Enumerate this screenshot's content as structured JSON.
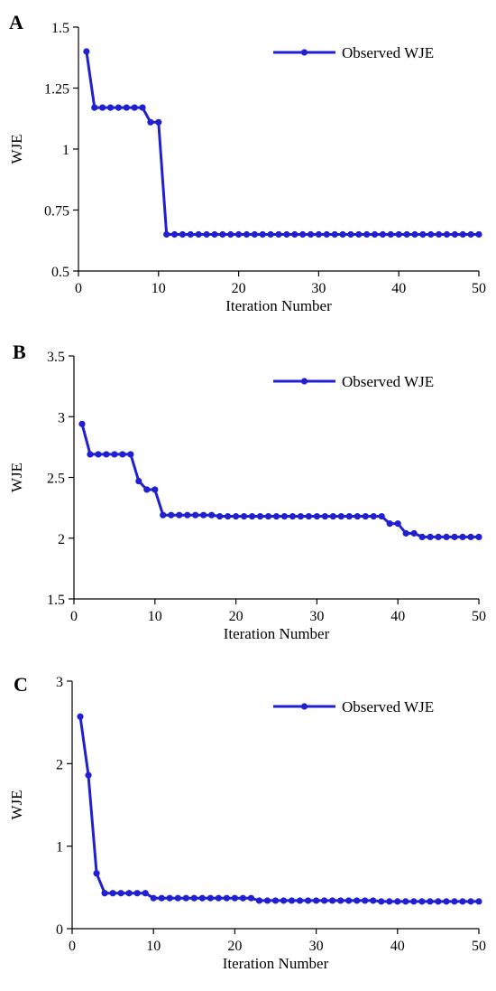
{
  "colors": {
    "series": "#2020d0",
    "axis": "#000000"
  },
  "chart_data": [
    {
      "panel_label": "A",
      "type": "line",
      "xlabel": "Iteration Number",
      "ylabel": "WJE",
      "xlim": [
        0,
        50
      ],
      "ylim": [
        0.5,
        1.5
      ],
      "xticks": [
        0,
        10,
        20,
        30,
        40,
        50
      ],
      "xtick_labels": [
        "0",
        "10",
        "20",
        "30",
        "40",
        "50"
      ],
      "yticks": [
        0.5,
        0.75,
        1,
        1.25,
        1.5
      ],
      "ytick_labels": [
        "0.5",
        "0.75",
        "1",
        "1.25",
        "1.5"
      ],
      "legend_position": "top-right",
      "series": [
        {
          "name": "Observed WJE",
          "x": [
            1,
            2,
            3,
            4,
            5,
            6,
            7,
            8,
            9,
            10,
            11,
            12,
            13,
            14,
            15,
            16,
            17,
            18,
            19,
            20,
            21,
            22,
            23,
            24,
            25,
            26,
            27,
            28,
            29,
            30,
            31,
            32,
            33,
            34,
            35,
            36,
            37,
            38,
            39,
            40,
            41,
            42,
            43,
            44,
            45,
            46,
            47,
            48,
            49,
            50
          ],
          "y": [
            1.4,
            1.17,
            1.17,
            1.17,
            1.17,
            1.17,
            1.17,
            1.17,
            1.11,
            1.11,
            0.65,
            0.65,
            0.65,
            0.65,
            0.65,
            0.65,
            0.65,
            0.65,
            0.65,
            0.65,
            0.65,
            0.65,
            0.65,
            0.65,
            0.65,
            0.65,
            0.65,
            0.65,
            0.65,
            0.65,
            0.65,
            0.65,
            0.65,
            0.65,
            0.65,
            0.65,
            0.65,
            0.65,
            0.65,
            0.65,
            0.65,
            0.65,
            0.65,
            0.65,
            0.65,
            0.65,
            0.65,
            0.65,
            0.65,
            0.65
          ]
        }
      ]
    },
    {
      "panel_label": "B",
      "type": "line",
      "xlabel": "Iteration Number",
      "ylabel": "WJE",
      "xlim": [
        0,
        50
      ],
      "ylim": [
        1.5,
        3.5
      ],
      "xticks": [
        0,
        10,
        20,
        30,
        40,
        50
      ],
      "xtick_labels": [
        "0",
        "10",
        "20",
        "30",
        "40",
        "50"
      ],
      "yticks": [
        1.5,
        2,
        2.5,
        3,
        3.5
      ],
      "ytick_labels": [
        "1.5",
        "2",
        "2.5",
        "3",
        "3.5"
      ],
      "legend_position": "top-right",
      "series": [
        {
          "name": "Observed WJE",
          "x": [
            1,
            2,
            3,
            4,
            5,
            6,
            7,
            8,
            9,
            10,
            11,
            12,
            13,
            14,
            15,
            16,
            17,
            18,
            19,
            20,
            21,
            22,
            23,
            24,
            25,
            26,
            27,
            28,
            29,
            30,
            31,
            32,
            33,
            34,
            35,
            36,
            37,
            38,
            39,
            40,
            41,
            42,
            43,
            44,
            45,
            46,
            47,
            48,
            49,
            50
          ],
          "y": [
            2.94,
            2.69,
            2.69,
            2.69,
            2.69,
            2.69,
            2.69,
            2.47,
            2.4,
            2.4,
            2.19,
            2.19,
            2.19,
            2.19,
            2.19,
            2.19,
            2.19,
            2.18,
            2.18,
            2.18,
            2.18,
            2.18,
            2.18,
            2.18,
            2.18,
            2.18,
            2.18,
            2.18,
            2.18,
            2.18,
            2.18,
            2.18,
            2.18,
            2.18,
            2.18,
            2.18,
            2.18,
            2.18,
            2.12,
            2.12,
            2.04,
            2.04,
            2.01,
            2.01,
            2.01,
            2.01,
            2.01,
            2.01,
            2.01,
            2.01
          ]
        }
      ]
    },
    {
      "panel_label": "C",
      "type": "line",
      "xlabel": "Iteration Number",
      "ylabel": "WJE",
      "xlim": [
        0,
        50
      ],
      "ylim": [
        0,
        3
      ],
      "xticks": [
        0,
        10,
        20,
        30,
        40,
        50
      ],
      "xtick_labels": [
        "0",
        "10",
        "20",
        "30",
        "40",
        "50"
      ],
      "yticks": [
        0,
        1,
        2,
        3
      ],
      "ytick_labels": [
        "0",
        "1",
        "2",
        "3"
      ],
      "legend_position": "top-right",
      "series": [
        {
          "name": "Observed WJE",
          "x": [
            1,
            2,
            3,
            4,
            5,
            6,
            7,
            8,
            9,
            10,
            11,
            12,
            13,
            14,
            15,
            16,
            17,
            18,
            19,
            20,
            21,
            22,
            23,
            24,
            25,
            26,
            27,
            28,
            29,
            30,
            31,
            32,
            33,
            34,
            35,
            36,
            37,
            38,
            39,
            40,
            41,
            42,
            43,
            44,
            45,
            46,
            47,
            48,
            49,
            50
          ],
          "y": [
            2.57,
            1.86,
            0.67,
            0.43,
            0.43,
            0.43,
            0.43,
            0.43,
            0.43,
            0.37,
            0.37,
            0.37,
            0.37,
            0.37,
            0.37,
            0.37,
            0.37,
            0.37,
            0.37,
            0.37,
            0.37,
            0.37,
            0.34,
            0.34,
            0.34,
            0.34,
            0.34,
            0.34,
            0.34,
            0.34,
            0.34,
            0.34,
            0.34,
            0.34,
            0.34,
            0.34,
            0.34,
            0.33,
            0.33,
            0.33,
            0.33,
            0.33,
            0.33,
            0.33,
            0.33,
            0.33,
            0.33,
            0.33,
            0.33,
            0.33
          ]
        }
      ]
    }
  ]
}
